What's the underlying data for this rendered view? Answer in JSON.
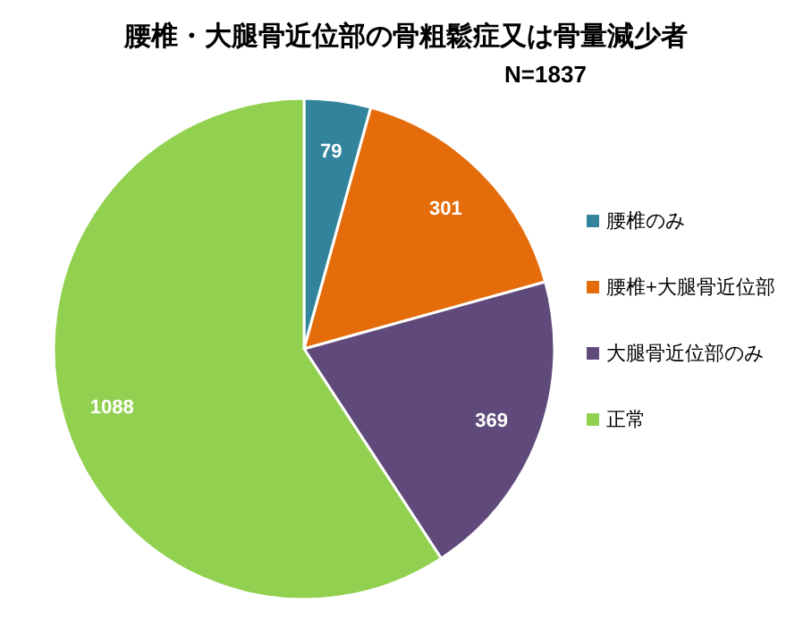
{
  "chart_data": {
    "type": "pie",
    "title": "腰椎・大腿骨近位部の骨粗鬆症又は骨量減少者",
    "subtitle": "N=1837",
    "categories": [
      "腰椎のみ",
      "腰椎+大腿骨近位部",
      "大腿骨近位部のみ",
      "正常"
    ],
    "values": [
      79,
      301,
      369,
      1088
    ],
    "colors": [
      "#31849b",
      "#e46c0a",
      "#604a7b",
      "#92d050"
    ],
    "data_labels": true,
    "legend": "right"
  }
}
